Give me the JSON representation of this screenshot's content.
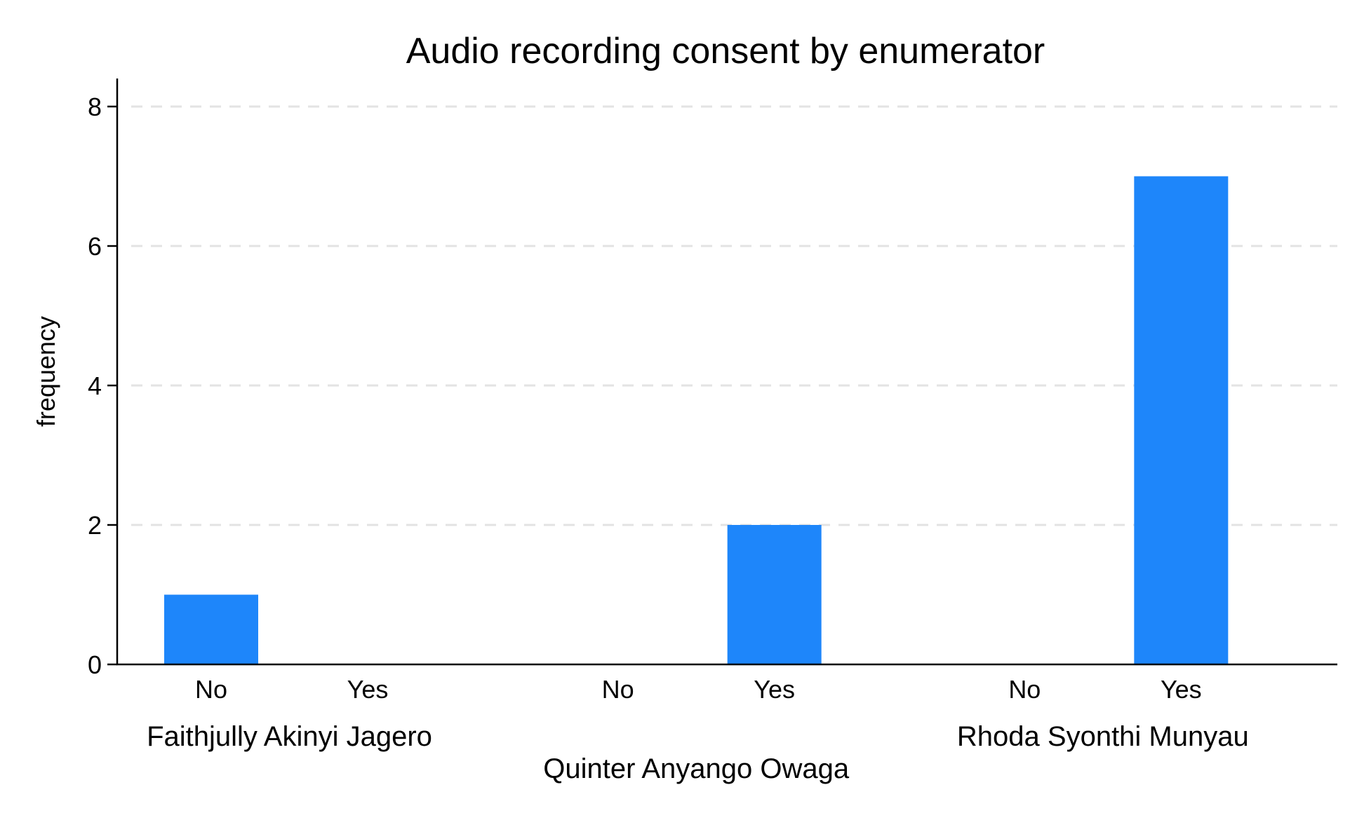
{
  "chart_data": {
    "type": "bar",
    "title": "Audio recording consent by enumerator",
    "ylabel": "frequency",
    "xlabel": "",
    "ylim": [
      0,
      8
    ],
    "yticks": [
      0,
      2,
      4,
      6,
      8
    ],
    "grid": true,
    "bar_color": "#1e86fa",
    "groups": [
      {
        "name": "Faithjully Akinyi Jagero",
        "categories": [
          "No",
          "Yes"
        ],
        "values": [
          1,
          0
        ]
      },
      {
        "name": "Quinter Anyango Owaga",
        "categories": [
          "No",
          "Yes"
        ],
        "values": [
          0,
          2
        ]
      },
      {
        "name": "Rhoda Syonthi Munyau",
        "categories": [
          "No",
          "Yes"
        ],
        "values": [
          0,
          7
        ]
      }
    ]
  }
}
